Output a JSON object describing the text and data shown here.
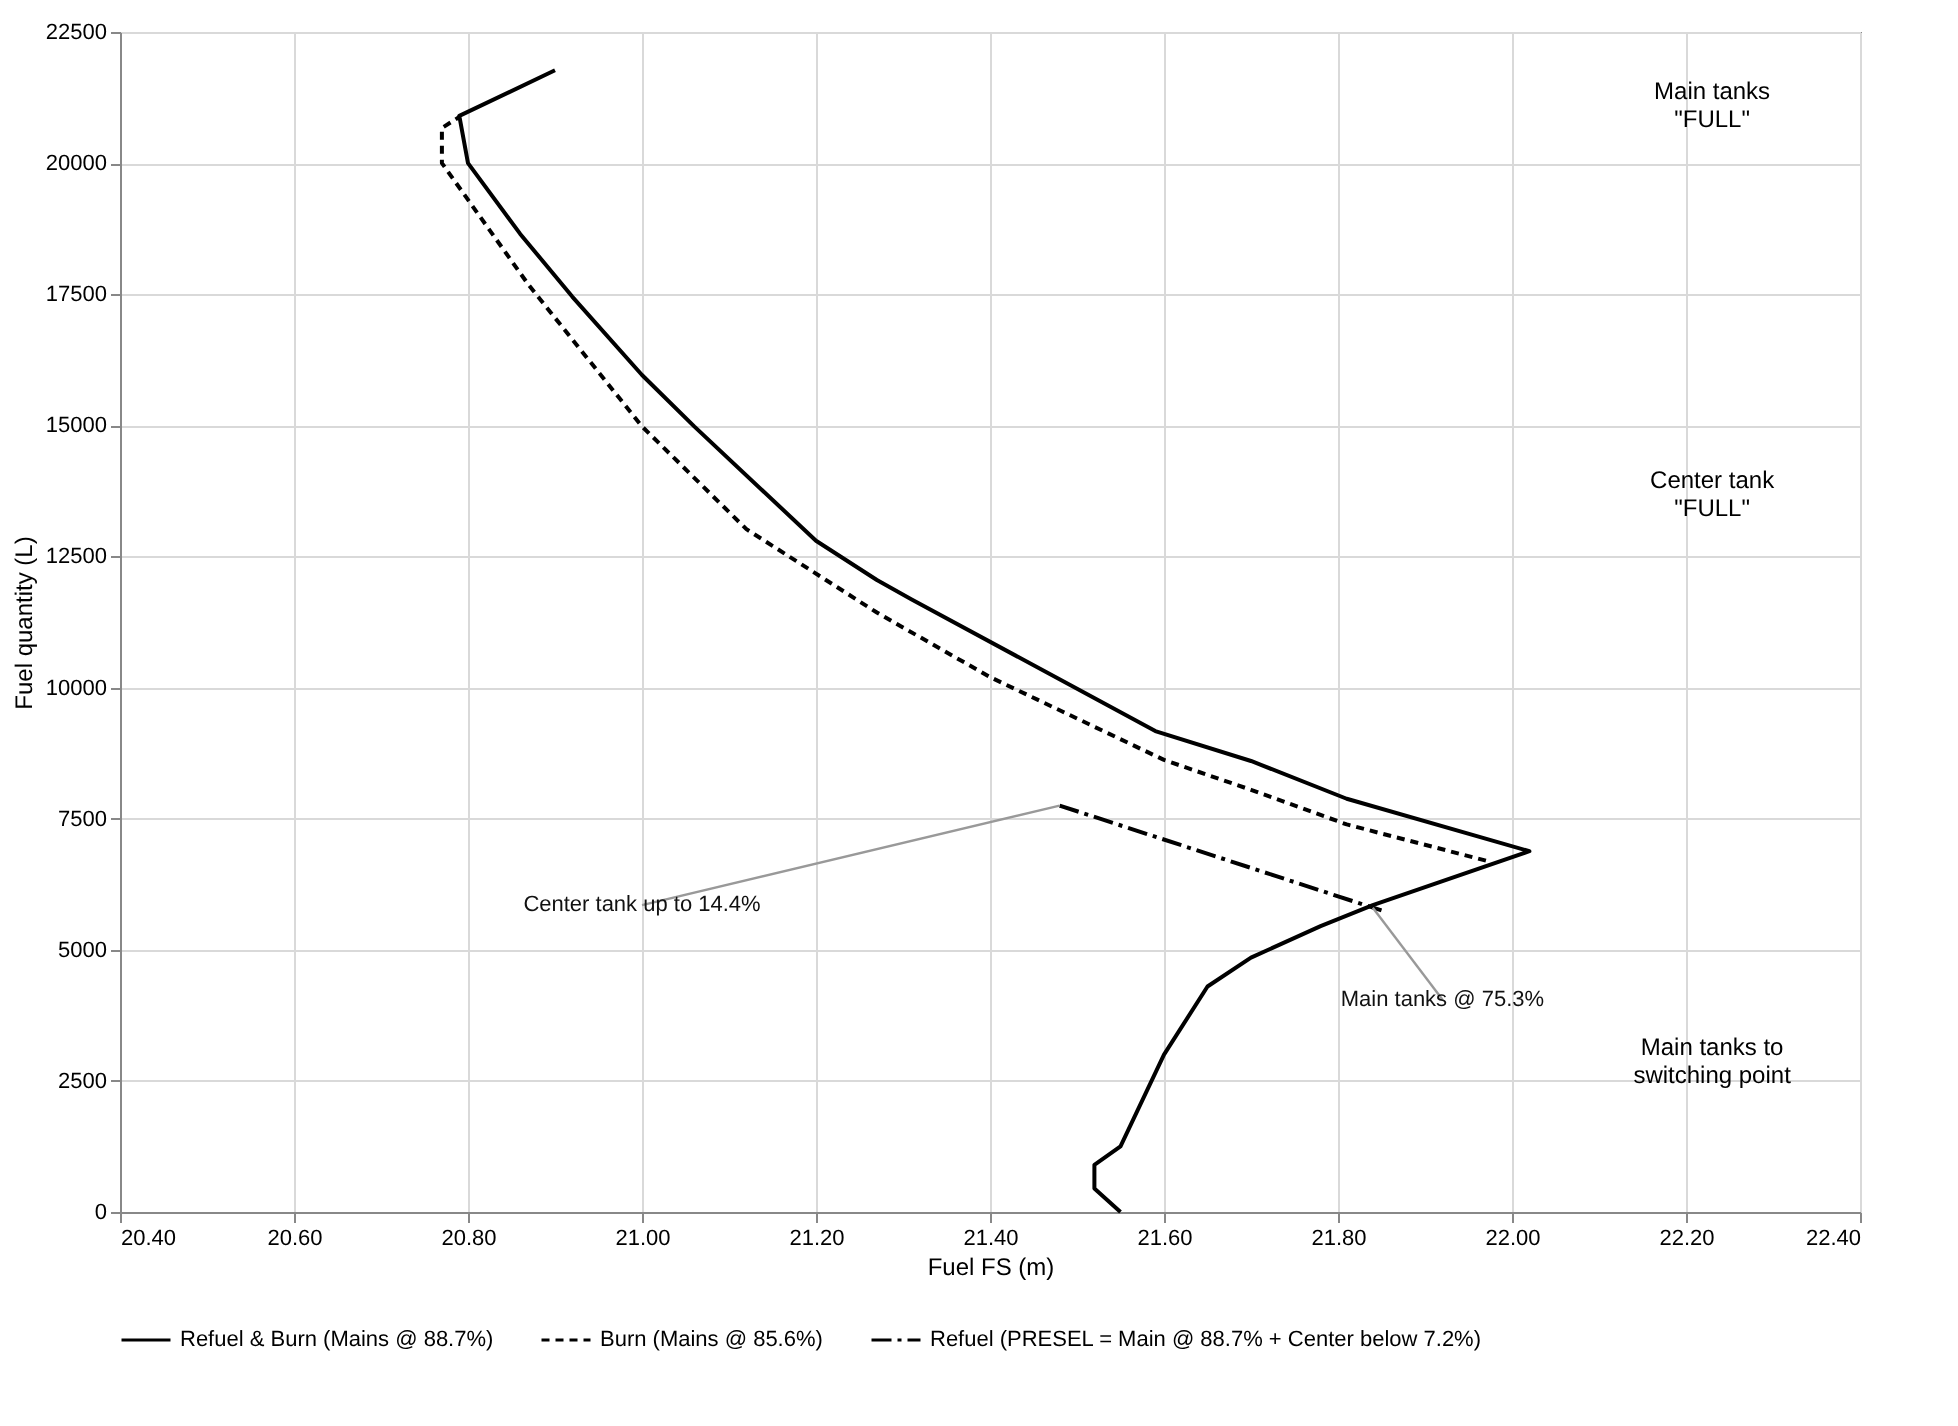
{
  "chart_data": {
    "type": "line",
    "xlabel": "Fuel FS (m)",
    "ylabel": "Fuel quantity (L)",
    "xlim": [
      20.4,
      22.4
    ],
    "xticks": [
      {
        "value": 20.4,
        "label": "20.40"
      },
      {
        "value": 20.6,
        "label": "20.60"
      },
      {
        "value": 20.8,
        "label": "20.80"
      },
      {
        "value": 21.0,
        "label": "21.00"
      },
      {
        "value": 21.2,
        "label": "21.20"
      },
      {
        "value": 21.4,
        "label": "21.40"
      },
      {
        "value": 21.6,
        "label": "21.60"
      },
      {
        "value": 21.8,
        "label": "21.80"
      },
      {
        "value": 22.0,
        "label": "22.00"
      },
      {
        "value": 22.2,
        "label": "22.20"
      },
      {
        "value": 22.4,
        "label": "22.40"
      }
    ],
    "ylim": [
      0,
      22500
    ],
    "yticks": [
      0,
      2500,
      5000,
      7500,
      10000,
      12500,
      15000,
      17500,
      20000,
      22500
    ],
    "grid": true,
    "legend": "bottom",
    "marker": "none",
    "series": [
      {
        "name": "Refuel & Burn (Mains @ 88.7%)",
        "color": "#000000",
        "line_style": "solid",
        "x": [
          21.55,
          21.52,
          21.52,
          21.55,
          21.6,
          21.65,
          21.7,
          21.78,
          21.84,
          22.02,
          21.81,
          21.7,
          21.59,
          21.31,
          21.27,
          21.2,
          21.06,
          21.0,
          20.92,
          20.86,
          20.8,
          20.79,
          20.9
        ],
        "values": [
          0,
          450,
          900,
          1250,
          3000,
          4300,
          4850,
          5450,
          5850,
          6880,
          7880,
          8600,
          9170,
          11680,
          12050,
          12800,
          14980,
          15960,
          17450,
          18650,
          20000,
          20900,
          21770
        ]
      },
      {
        "name": "Burn (Mains @ 85.6%)",
        "color": "#000000",
        "line_style": "dashed",
        "x": [
          21.97,
          21.81,
          21.7,
          21.6,
          21.4,
          21.27,
          21.12,
          21.0,
          20.87,
          20.77,
          20.77,
          20.79
        ],
        "values": [
          6700,
          7390,
          8050,
          8620,
          10200,
          11430,
          13020,
          14980,
          17670,
          20000,
          20670,
          20880
        ]
      },
      {
        "name": "Refuel (PRESEL = Main @ 88.7% + Center below 7.2%)",
        "color": "#000000",
        "line_style": "dashdot",
        "x": [
          21.48,
          21.85
        ],
        "values": [
          7750,
          5750
        ]
      }
    ],
    "annotations": [
      {
        "text": "Center tank up to 14.4%",
        "x": 21.48,
        "y": 7750
      },
      {
        "text": "Main tanks @ 75.3%",
        "x": 21.84,
        "y": 5800
      },
      "Main tanks\n\"FULL\"",
      "Center tank\n\"FULL\"",
      "Main tanks to\nswitching point"
    ]
  }
}
